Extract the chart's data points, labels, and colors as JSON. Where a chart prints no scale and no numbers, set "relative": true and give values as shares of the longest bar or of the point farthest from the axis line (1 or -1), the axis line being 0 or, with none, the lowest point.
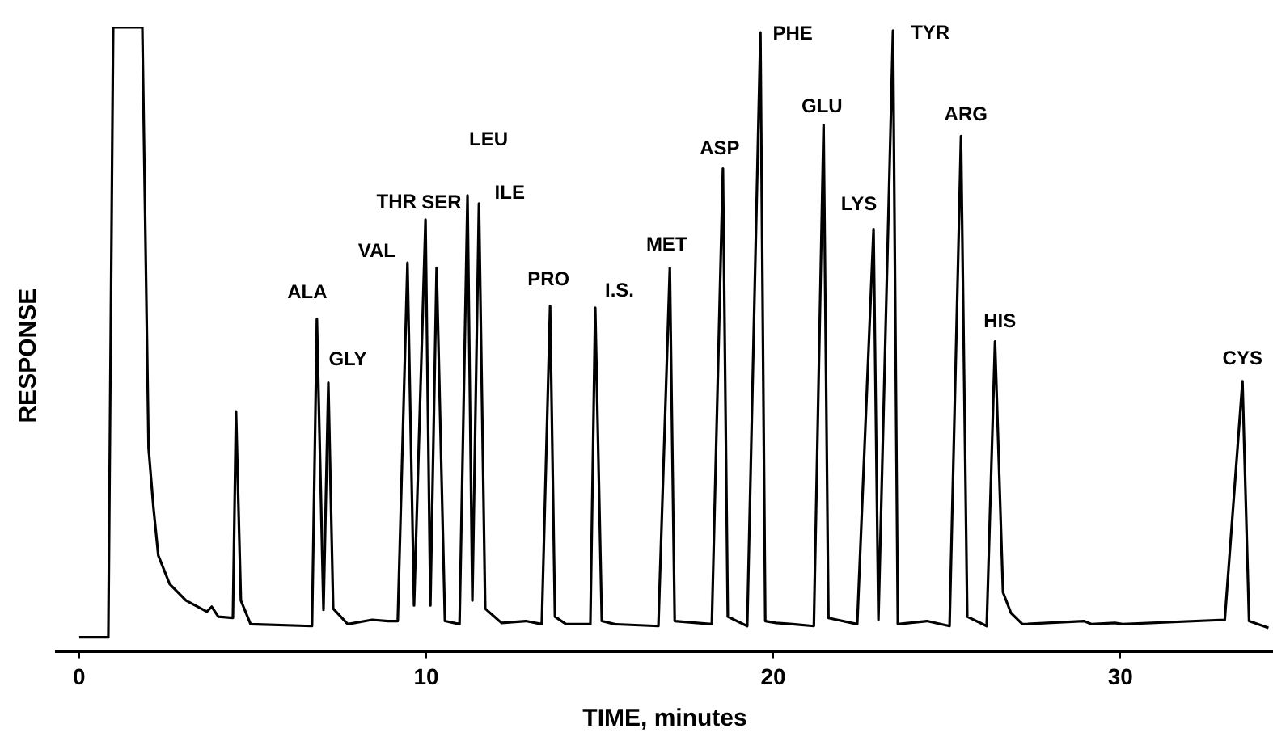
{
  "chart_data": {
    "type": "line",
    "relative": true,
    "xlabel": "TIME, minutes",
    "ylabel": "RESPONSE",
    "x": [
      0,
      0.84,
      0.98,
      1.82,
      2.0,
      2.14,
      2.28,
      2.61,
      3.08,
      3.68,
      3.82,
      4.01,
      4.43,
      4.52,
      4.66,
      4.94,
      6.71,
      6.85,
      7.04,
      7.18,
      7.32,
      7.74,
      8.44,
      8.9,
      9.18,
      9.46,
      9.65,
      9.98,
      10.12,
      10.3,
      10.54,
      10.96,
      11.19,
      11.33,
      11.52,
      11.7,
      12.17,
      12.87,
      13.33,
      13.57,
      13.71,
      14.03,
      14.73,
      14.87,
      15.06,
      15.43,
      16.69,
      17.02,
      17.16,
      18.23,
      18.55,
      18.69,
      19.25,
      19.63,
      19.77,
      20.09,
      20.56,
      21.17,
      21.45,
      21.59,
      22.42,
      22.89,
      23.03,
      23.45,
      23.59,
      24.43,
      25.08,
      25.41,
      25.59,
      26.15,
      26.39,
      26.62,
      26.85,
      27.18,
      28.95,
      29.18,
      29.84,
      30.07,
      33.01,
      33.52,
      33.71,
      34.27
    ],
    "series": [
      {
        "color": "#000000",
        "values": [
          0.023,
          0.023,
          1,
          1,
          0.326,
          0.231,
          0.154,
          0.108,
          0.082,
          0.064,
          0.072,
          0.056,
          0.054,
          0.385,
          0.082,
          0.044,
          0.041,
          0.533,
          0.067,
          0.431,
          0.069,
          0.044,
          0.051,
          0.049,
          0.049,
          0.623,
          0.074,
          0.692,
          0.074,
          0.615,
          0.049,
          0.044,
          0.731,
          0.082,
          0.718,
          0.069,
          0.046,
          0.049,
          0.044,
          0.554,
          0.056,
          0.044,
          0.044,
          0.551,
          0.049,
          0.044,
          0.041,
          0.615,
          0.049,
          0.044,
          0.774,
          0.056,
          0.041,
          0.992,
          0.049,
          0.046,
          0.044,
          0.041,
          0.844,
          0.054,
          0.044,
          0.677,
          0.051,
          0.995,
          0.044,
          0.049,
          0.041,
          0.826,
          0.056,
          0.041,
          0.497,
          0.095,
          0.062,
          0.044,
          0.049,
          0.044,
          0.046,
          0.044,
          0.051,
          0.433,
          0.049,
          0.038
        ]
      }
    ],
    "xlim": [
      -0.65,
      34.4
    ],
    "xticks": [
      0,
      10,
      20,
      30
    ],
    "annotations": [
      {
        "text": "ALA",
        "x": 6.85,
        "y": 0.533
      },
      {
        "text": "GLY",
        "x": 7.18,
        "y": 0.431
      },
      {
        "text": "VAL",
        "x": 9.46,
        "y": 0.623
      },
      {
        "text": "THR",
        "x": 9.98,
        "y": 0.692
      },
      {
        "text": "SER",
        "x": 10.3,
        "y": 0.615
      },
      {
        "text": "LEU",
        "x": 11.19,
        "y": 0.731
      },
      {
        "text": "ILE",
        "x": 11.52,
        "y": 0.718
      },
      {
        "text": "PRO",
        "x": 13.57,
        "y": 0.554
      },
      {
        "text": "I.S.",
        "x": 14.87,
        "y": 0.551
      },
      {
        "text": "MET",
        "x": 17.02,
        "y": 0.615
      },
      {
        "text": "ASP",
        "x": 18.55,
        "y": 0.774
      },
      {
        "text": "PHE",
        "x": 19.63,
        "y": 0.992
      },
      {
        "text": "GLU",
        "x": 21.45,
        "y": 0.844
      },
      {
        "text": "LYS",
        "x": 22.89,
        "y": 0.677
      },
      {
        "text": "TYR",
        "x": 23.45,
        "y": 0.995
      },
      {
        "text": "ARG",
        "x": 25.41,
        "y": 0.826
      },
      {
        "text": "HIS",
        "x": 26.39,
        "y": 0.497
      },
      {
        "text": "CYS",
        "x": 33.52,
        "y": 0.433
      }
    ]
  }
}
